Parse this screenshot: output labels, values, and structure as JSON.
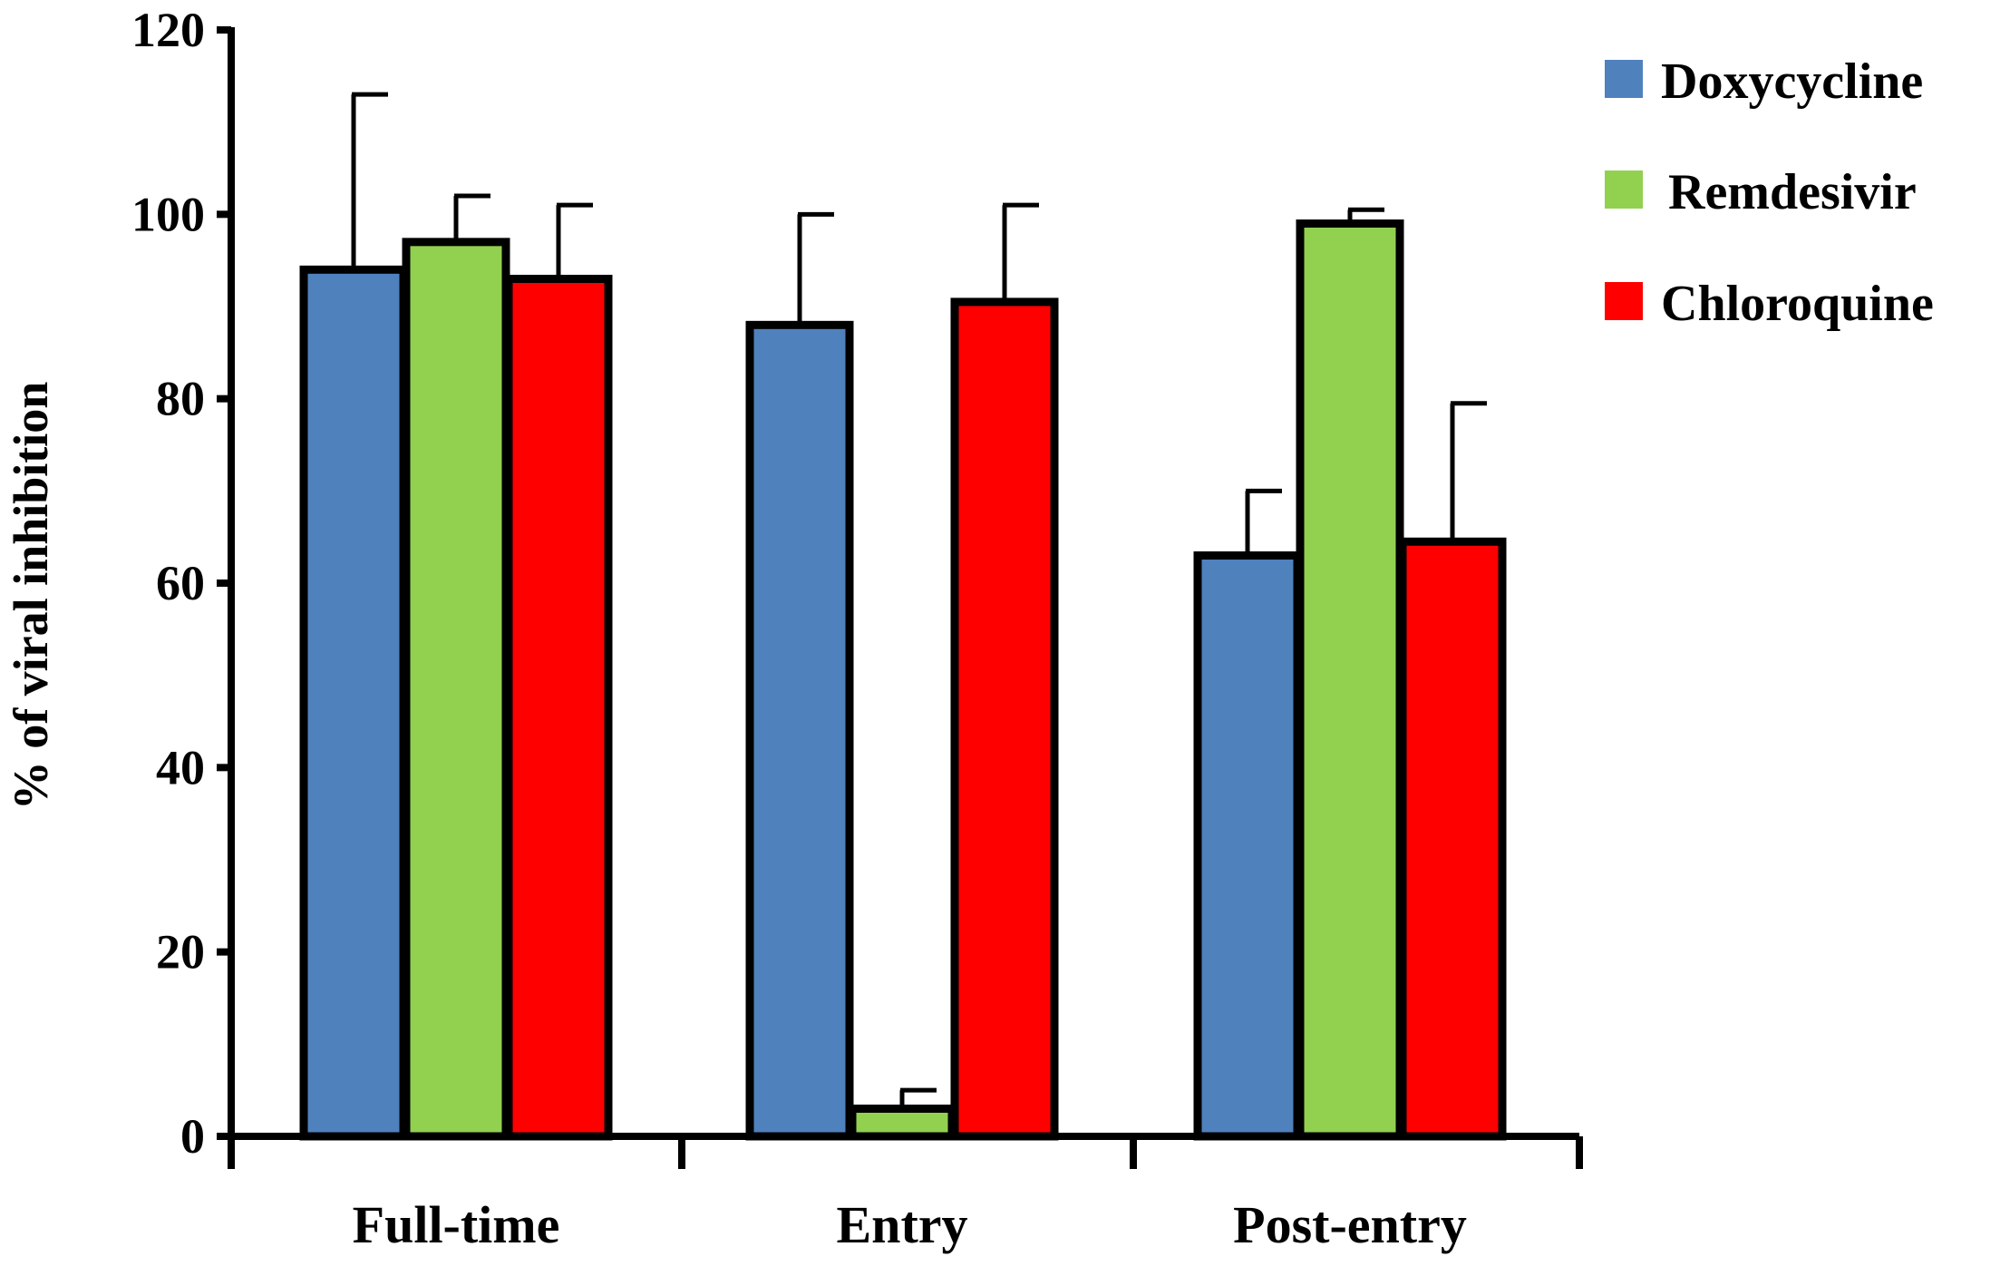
{
  "chart_data": {
    "type": "bar",
    "ylabel": "% of viral inhibition",
    "xlabel": "",
    "ylim": [
      0,
      120
    ],
    "yticks": [
      0,
      20,
      40,
      60,
      80,
      100,
      120
    ],
    "grid": false,
    "legend_position": "top-right",
    "categories": [
      "Full-time",
      "Entry",
      "Post-entry"
    ],
    "series": [
      {
        "name": "Doxycycline",
        "color": "#4f81bd",
        "values": [
          94,
          88,
          63
        ],
        "errors": [
          19,
          12,
          7
        ]
      },
      {
        "name": "Remdesivir",
        "color": "#92d050",
        "values": [
          97,
          3,
          99
        ],
        "errors": [
          5,
          2,
          1.5
        ]
      },
      {
        "name": "Chloroquine",
        "color": "#ff0000",
        "values": [
          93,
          90.5,
          64.5
        ],
        "errors": [
          8,
          10.5,
          15
        ]
      }
    ]
  }
}
